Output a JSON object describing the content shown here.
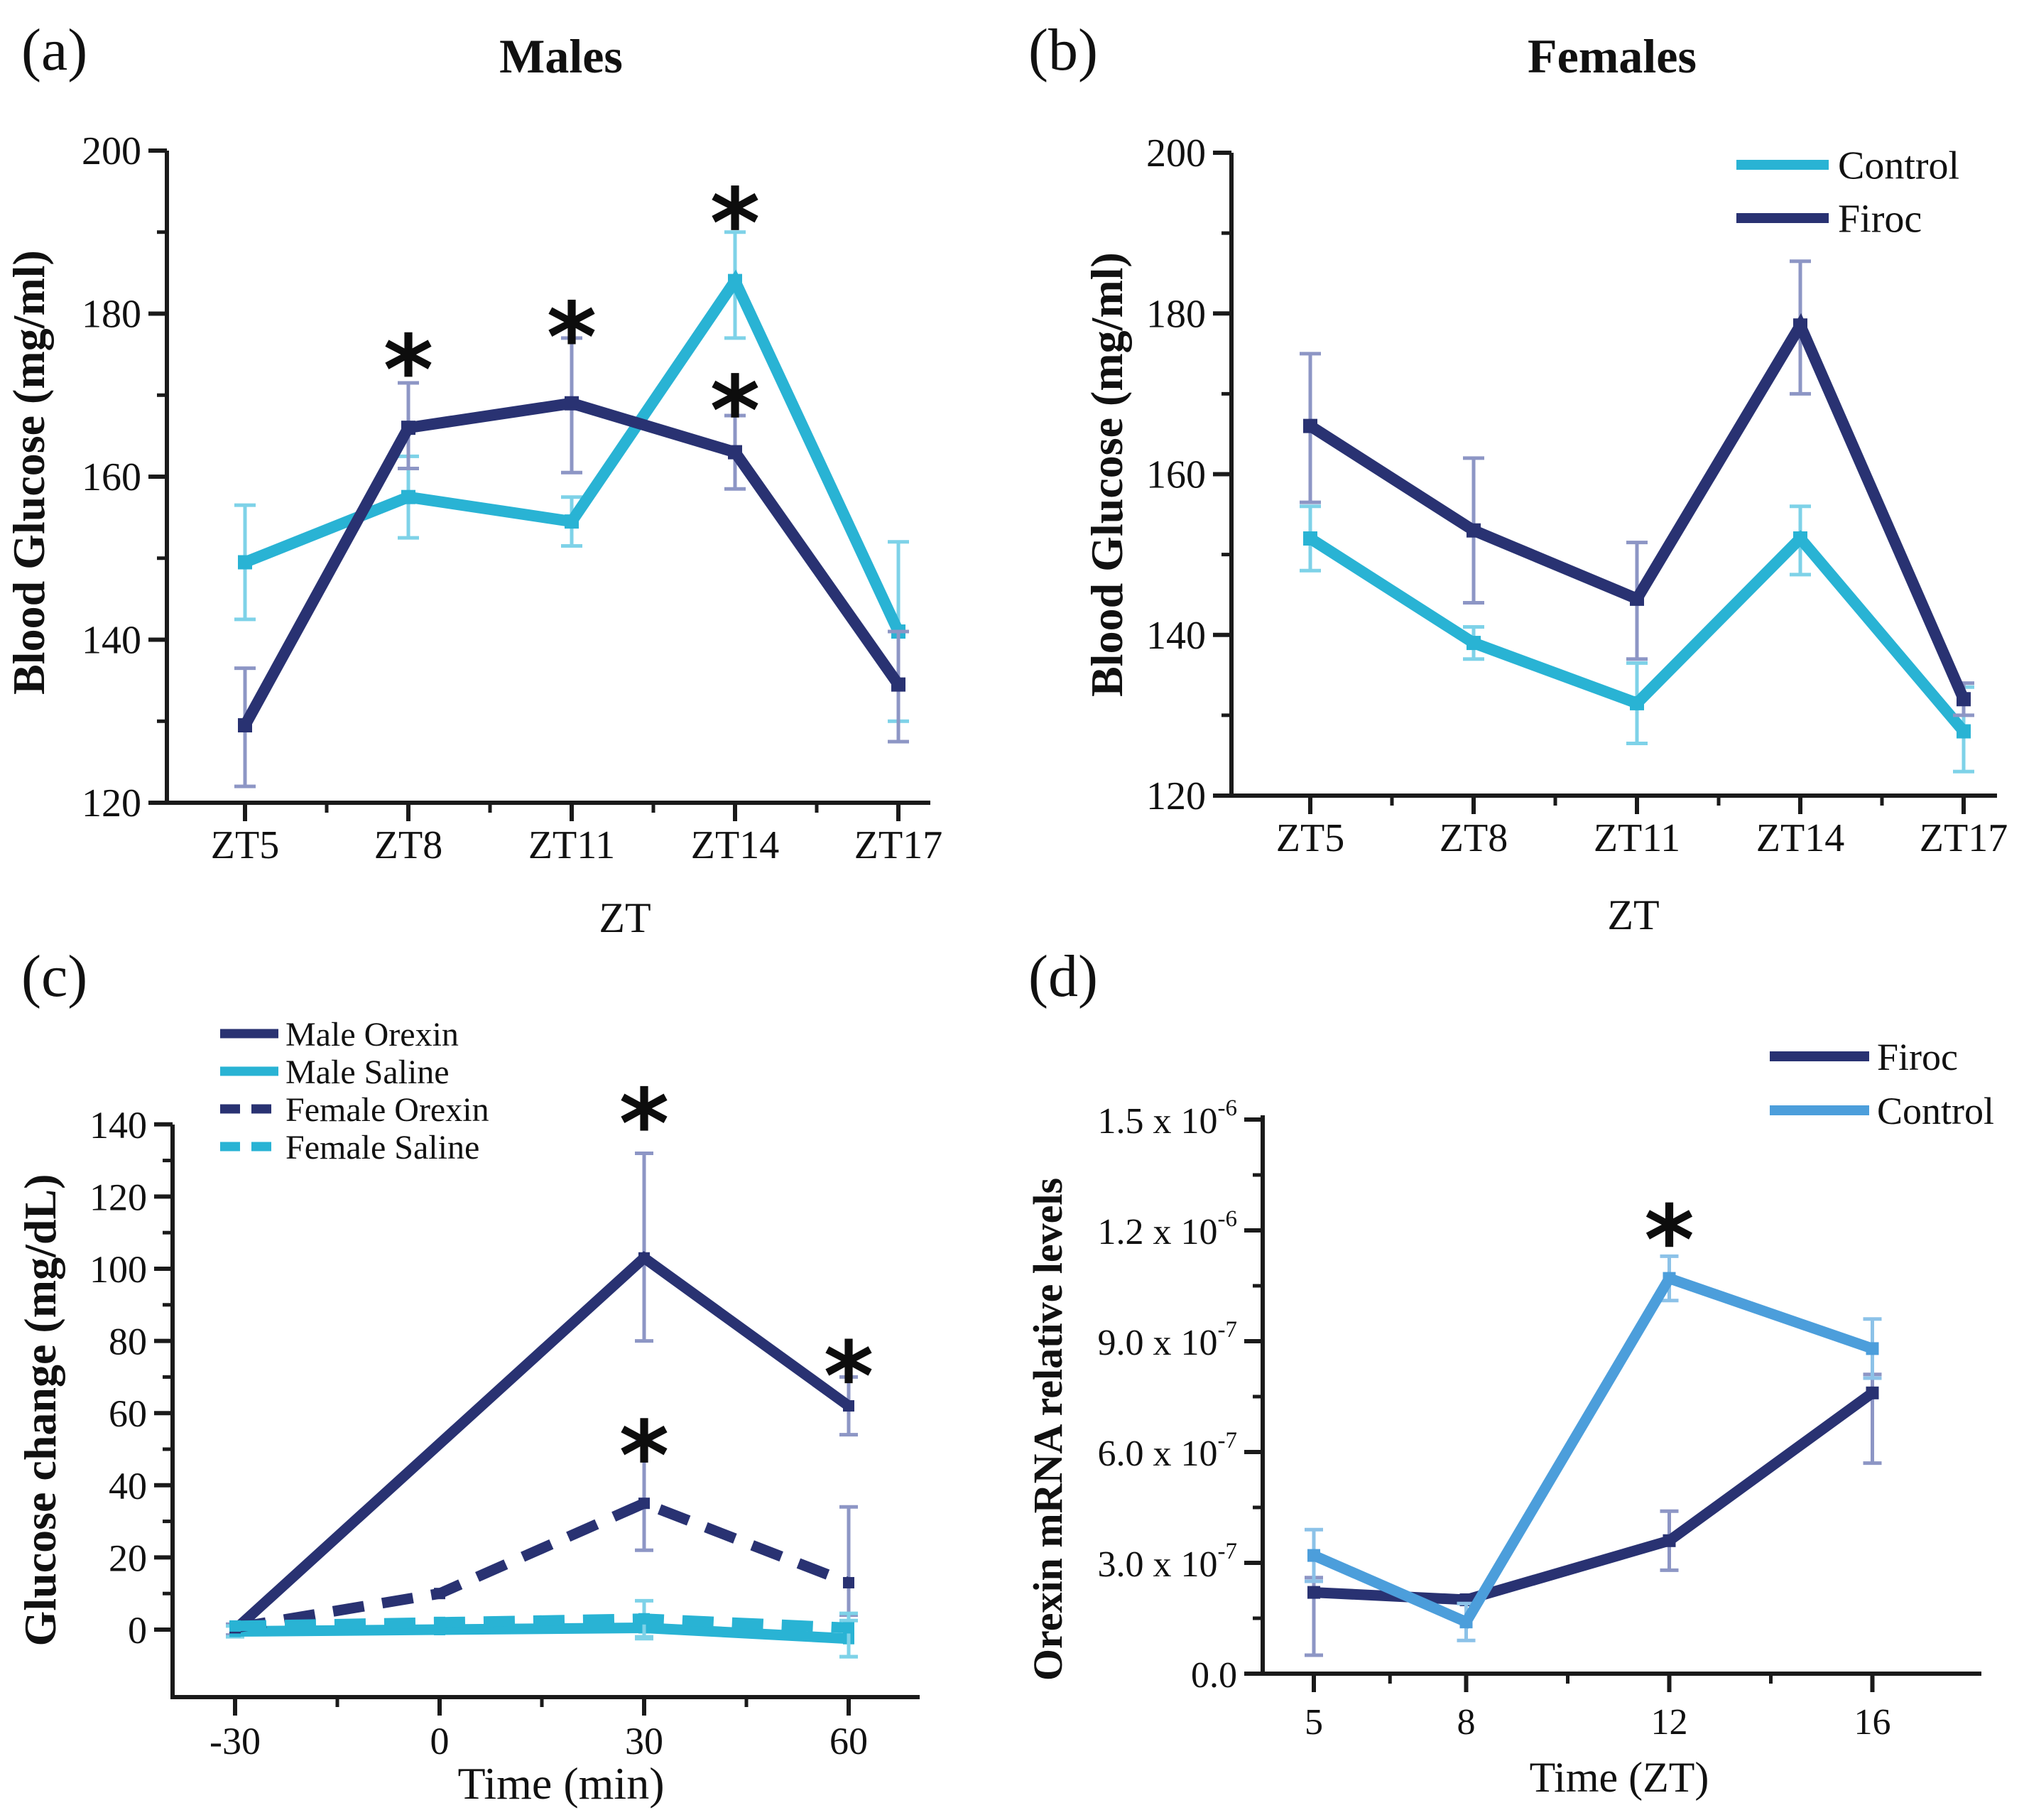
{
  "figure": {
    "panel_tags": {
      "a": "(a)",
      "b": "(b)",
      "c": "(c)",
      "d": "(d)"
    }
  },
  "colors": {
    "navy": "#293272",
    "cyan": "#29b3d4",
    "sky": "#4c9edb",
    "navy_err": "#8d96c5",
    "cyan_err": "#7ed2e8",
    "sky_err": "#8cc2e8",
    "axis": "#1a1a1a",
    "text": "#111111",
    "asterisk": "#0d0d0d"
  },
  "chart_data": [
    {
      "panel": "a",
      "type": "line",
      "title": "Males",
      "xlabel": "ZT",
      "ylabel": "Blood Glucose (mg/ml)",
      "x_categories": [
        "ZT5",
        "ZT8",
        "ZT11",
        "ZT14",
        "ZT17"
      ],
      "ylim": [
        120,
        200
      ],
      "yticks": [
        120,
        140,
        160,
        180,
        200
      ],
      "ytick_labels": [
        "120",
        "140",
        "160",
        "180",
        "200"
      ],
      "yticks_minor": [
        130,
        150,
        170,
        190
      ],
      "legend": null,
      "series": [
        {
          "name": "Control",
          "color": "cyan",
          "err_color": "cyan_err",
          "line": "solid",
          "values": [
            149.5,
            157.5,
            154.5,
            184,
            141
          ],
          "err": [
            [
              7,
              7
            ],
            [
              5,
              5
            ],
            [
              3,
              3
            ],
            [
              7,
              6
            ],
            [
              11,
              11
            ]
          ]
        },
        {
          "name": "Firoc",
          "color": "navy",
          "err_color": "navy_err",
          "line": "solid",
          "values": [
            129.5,
            166,
            169,
            163,
            134.5
          ],
          "err": [
            [
              7.5,
              7
            ],
            [
              5,
              5.5
            ],
            [
              8.5,
              8
            ],
            [
              4.5,
              4.5
            ],
            [
              7,
              6.5
            ]
          ]
        }
      ],
      "annotations": [
        {
          "text": "*",
          "x": 1,
          "y": 177
        },
        {
          "text": "*",
          "x": 2,
          "y": 181
        },
        {
          "text": "*",
          "x": 3,
          "y": 195
        },
        {
          "text": "*",
          "x": 3,
          "y": 172
        }
      ]
    },
    {
      "panel": "b",
      "type": "line",
      "title": "Females",
      "xlabel": "ZT",
      "ylabel": "Blood Glucose (mg/ml)",
      "x_categories": [
        "ZT5",
        "ZT8",
        "ZT11",
        "ZT14",
        "ZT17"
      ],
      "ylim": [
        120,
        200
      ],
      "yticks": [
        120,
        140,
        160,
        180,
        200
      ],
      "ytick_labels": [
        "120",
        "140",
        "160",
        "180",
        "200"
      ],
      "yticks_minor": [
        130,
        150,
        170,
        190
      ],
      "legend": {
        "position": "top-right",
        "items": [
          {
            "label": "Control",
            "color": "cyan",
            "line": "solid"
          },
          {
            "label": "Firoc",
            "color": "navy",
            "line": "solid"
          }
        ]
      },
      "series": [
        {
          "name": "Control",
          "color": "cyan",
          "err_color": "cyan_err",
          "line": "solid",
          "values": [
            152,
            139,
            131.5,
            152,
            128
          ],
          "err": [
            [
              4,
              4
            ],
            [
              2,
              2
            ],
            [
              5,
              5
            ],
            [
              4.5,
              4
            ],
            [
              5,
              5.5
            ]
          ]
        },
        {
          "name": "Firoc",
          "color": "navy",
          "err_color": "navy_err",
          "line": "solid",
          "values": [
            166,
            153,
            144.5,
            178.5,
            132
          ],
          "err": [
            [
              9.5,
              9
            ],
            [
              9,
              9
            ],
            [
              7.5,
              7
            ],
            [
              8.5,
              8
            ],
            [
              2,
              2
            ]
          ]
        }
      ],
      "annotations": []
    },
    {
      "panel": "c",
      "type": "line",
      "title": null,
      "xlabel": "Time (min)",
      "ylabel": "Glucose change (mg/dL)",
      "xlim": [
        -39,
        66
      ],
      "xticks": [
        -30,
        0,
        30,
        60
      ],
      "xtick_labels": [
        "-30",
        "0",
        "30",
        "60"
      ],
      "xticks_minor": [
        -15,
        15,
        45
      ],
      "ylim": [
        -18.7,
        140
      ],
      "yticks": [
        0,
        20,
        40,
        60,
        80,
        100,
        120,
        140
      ],
      "ytick_labels": [
        "0",
        "20",
        "40",
        "60",
        "80",
        "100",
        "120",
        "140"
      ],
      "yticks_minor": [
        10,
        30,
        50,
        70,
        90,
        110,
        130
      ],
      "legend": {
        "position": "top-left",
        "items": [
          {
            "label": "Male Orexin",
            "color": "navy",
            "line": "solid"
          },
          {
            "label": "Male Saline",
            "color": "cyan",
            "line": "solid"
          },
          {
            "label": "Female Orexin",
            "color": "navy",
            "line": "dashed"
          },
          {
            "label": "Female Saline",
            "color": "cyan",
            "line": "dashed"
          }
        ]
      },
      "series": [
        {
          "name": "Male Orexin",
          "color": "navy",
          "err_color": "navy_err",
          "line": "solid",
          "x": [
            -30,
            30,
            60
          ],
          "values": [
            0,
            103,
            62
          ],
          "err": [
            [
              1.5,
              1.5
            ],
            [
              23,
              29
            ],
            [
              8,
              8
            ]
          ]
        },
        {
          "name": "Male Saline",
          "color": "cyan",
          "err_color": "cyan_err",
          "line": "solid",
          "x": [
            -30,
            0,
            30,
            60
          ],
          "values": [
            -0.5,
            0,
            0.5,
            -2.5
          ],
          "err": [
            [
              1.5,
              1.5
            ],
            [
              0,
              0
            ],
            [
              3,
              3
            ],
            [
              5,
              5
            ]
          ]
        },
        {
          "name": "Female Orexin",
          "color": "navy",
          "err_color": "navy_err",
          "line": "dashed",
          "x": [
            -30,
            0,
            30,
            60
          ],
          "values": [
            0.5,
            10,
            35,
            13
          ],
          "err": [
            [
              0,
              0
            ],
            [
              0,
              0
            ],
            [
              13,
              17
            ],
            [
              9,
              21
            ]
          ]
        },
        {
          "name": "Female Saline",
          "color": "cyan",
          "err_color": "cyan_err",
          "line": "dashed",
          "x": [
            -30,
            0,
            30,
            60
          ],
          "values": [
            1,
            2,
            3,
            0.5
          ],
          "err": [
            [
              0,
              0
            ],
            [
              0,
              0
            ],
            [
              5,
              5
            ],
            [
              8,
              4
            ]
          ]
        }
      ],
      "annotations": [
        {
          "text": "*",
          "x": 30,
          "y": 149
        },
        {
          "text": "*",
          "x": 30,
          "y": 57
        },
        {
          "text": "*",
          "x": 60,
          "y": 79
        }
      ]
    },
    {
      "panel": "d",
      "type": "line",
      "title": null,
      "xlabel": "Time  (ZT)",
      "ylabel": "Orexin mRNA relative levels",
      "y_value_unit": "1e-7",
      "xlim": [
        4,
        17.5
      ],
      "xticks": [
        5,
        8,
        12,
        16
      ],
      "xtick_labels": [
        "5",
        "8",
        "12",
        "16"
      ],
      "xticks_minor": [
        6.5,
        10,
        14
      ],
      "ylim": [
        0,
        15.1
      ],
      "yticks": [
        0,
        3,
        6,
        9,
        12,
        15
      ],
      "ytick_labels": [
        {
          "t": "0.0",
          "e": ""
        },
        {
          "t": "3.0 x 10",
          "e": "-7"
        },
        {
          "t": "6.0 x 10",
          "e": "-7"
        },
        {
          "t": "9.0 x 10",
          "e": "-7"
        },
        {
          "t": "1.2 x 10",
          "e": "-6"
        },
        {
          "t": "1.5 x 10",
          "e": "-6"
        }
      ],
      "yticks_minor": [
        1.5,
        4.5,
        7.5,
        10.5,
        13.5
      ],
      "legend": {
        "position": "top-right",
        "items": [
          {
            "label": "Firoc",
            "color": "navy",
            "line": "solid"
          },
          {
            "label": "Control",
            "color": "sky",
            "line": "solid"
          }
        ]
      },
      "series": [
        {
          "name": "Firoc",
          "color": "navy",
          "err_color": "navy_err",
          "line": "solid",
          "x": [
            5,
            8,
            12,
            16
          ],
          "values": [
            2.2,
            2.0,
            3.6,
            7.6
          ],
          "err": [
            [
              1.7,
              0.4
            ],
            [
              0,
              0
            ],
            [
              0.8,
              0.8
            ],
            [
              1.9,
              0.5
            ]
          ]
        },
        {
          "name": "Control",
          "color": "sky",
          "err_color": "sky_err",
          "line": "solid",
          "x": [
            5,
            8,
            12,
            16
          ],
          "values": [
            3.2,
            1.4,
            10.7,
            8.8
          ],
          "err": [
            [
              0.7,
              0.7
            ],
            [
              0.5,
              0.5
            ],
            [
              0.6,
              0.6
            ],
            [
              0.8,
              0.8
            ]
          ]
        }
      ],
      "annotations": [
        {
          "text": "*",
          "x": 12,
          "y": 12.6
        }
      ]
    }
  ]
}
